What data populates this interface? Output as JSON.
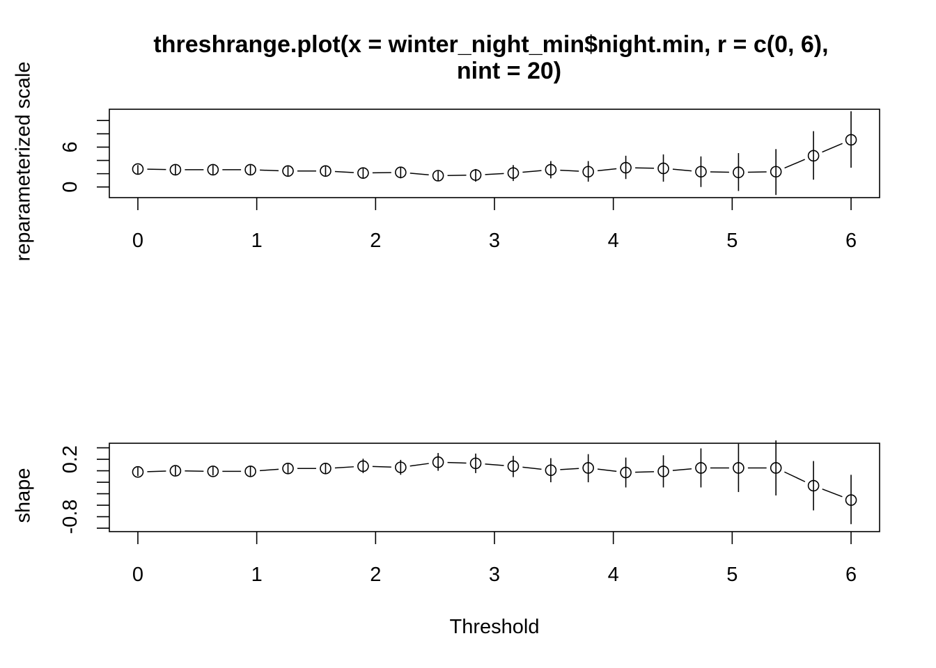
{
  "chart_data": [
    {
      "type": "scatter",
      "title_line1": "threshrange.plot(x = winter_night_min$night.min, r = c(0, 6),",
      "title_line2": "nint = 20)",
      "xlabel": "",
      "ylabel": "reparameterized scale",
      "xlim": [
        -0.24,
        6.24
      ],
      "ylim": [
        -1.6,
        11.7
      ],
      "x_ticks": [
        "0",
        "1",
        "2",
        "3",
        "4",
        "5",
        "6"
      ],
      "y_ticks": [
        "0",
        "6"
      ],
      "y_minor_ticks": [
        0,
        2,
        4,
        6,
        8,
        10
      ],
      "grid": false,
      "series": [
        {
          "x": [
            0,
            0.316,
            0.632,
            0.947,
            1.263,
            1.579,
            1.895,
            2.211,
            2.526,
            2.842,
            3.158,
            3.474,
            3.789,
            4.105,
            4.421,
            4.737,
            5.053,
            5.368,
            5.684,
            6.0
          ],
          "y": [
            2.7,
            2.6,
            2.6,
            2.6,
            2.4,
            2.4,
            2.1,
            2.2,
            1.7,
            1.8,
            2.1,
            2.6,
            2.3,
            2.9,
            2.8,
            2.3,
            2.2,
            2.3,
            4.7,
            7.1
          ],
          "lower": [
            2.0,
            1.9,
            1.9,
            1.9,
            1.7,
            1.6,
            1.3,
            1.3,
            0.9,
            0.8,
            0.9,
            1.3,
            0.8,
            1.2,
            0.8,
            0.0,
            -0.6,
            -1.2,
            1.1,
            2.9
          ],
          "upper": [
            3.3,
            3.3,
            3.3,
            3.3,
            3.1,
            3.1,
            2.9,
            3.0,
            2.4,
            2.7,
            3.3,
            3.9,
            3.9,
            4.7,
            4.9,
            4.6,
            5.1,
            5.7,
            8.4,
            11.4
          ]
        }
      ]
    },
    {
      "type": "scatter",
      "xlabel": "Threshold",
      "ylabel": "shape",
      "xlim": [
        -0.24,
        6.24
      ],
      "ylim": [
        -1.06,
        0.48
      ],
      "x_ticks": [
        "0",
        "1",
        "2",
        "3",
        "4",
        "5",
        "6"
      ],
      "y_ticks": [
        "-0.8",
        "0.2"
      ],
      "y_minor_ticks": [
        -1.0,
        -0.8,
        -0.6,
        -0.4,
        -0.2,
        0.0,
        0.2,
        0.4
      ],
      "grid": false,
      "series": [
        {
          "x": [
            0,
            0.316,
            0.632,
            0.947,
            1.263,
            1.579,
            1.895,
            2.211,
            2.526,
            2.842,
            3.158,
            3.474,
            3.789,
            4.105,
            4.421,
            4.737,
            5.053,
            5.368,
            5.684,
            6.0
          ],
          "y": [
            -0.02,
            0.0,
            -0.01,
            -0.01,
            0.04,
            0.04,
            0.08,
            0.06,
            0.15,
            0.13,
            0.08,
            0.01,
            0.05,
            -0.03,
            -0.01,
            0.05,
            0.05,
            0.05,
            -0.26,
            -0.51
          ],
          "lower": [
            -0.09,
            -0.08,
            -0.08,
            -0.09,
            -0.04,
            -0.05,
            -0.04,
            -0.07,
            0.0,
            -0.04,
            -0.11,
            -0.2,
            -0.2,
            -0.29,
            -0.29,
            -0.29,
            -0.37,
            -0.43,
            -0.69,
            -0.93
          ],
          "upper": [
            0.06,
            0.08,
            0.07,
            0.08,
            0.12,
            0.13,
            0.21,
            0.19,
            0.31,
            0.3,
            0.26,
            0.22,
            0.29,
            0.23,
            0.27,
            0.39,
            0.47,
            0.53,
            0.17,
            -0.07
          ]
        }
      ]
    }
  ]
}
